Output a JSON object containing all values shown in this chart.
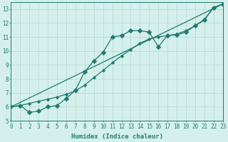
{
  "line1_x": [
    0,
    1,
    2,
    3,
    4,
    5,
    6,
    7,
    8,
    9,
    10,
    11,
    12,
    13,
    14,
    15,
    16,
    17,
    18,
    19,
    20,
    21,
    22,
    23
  ],
  "line1_y": [
    6.0,
    6.1,
    5.6,
    5.7,
    6.0,
    6.1,
    6.6,
    7.2,
    8.5,
    9.3,
    9.9,
    11.0,
    11.1,
    11.45,
    11.45,
    11.35,
    10.3,
    11.1,
    11.15,
    11.35,
    11.8,
    12.2,
    13.1,
    13.35
  ],
  "line2_x": [
    0,
    23
  ],
  "line2_y": [
    6.0,
    13.35
  ],
  "line3_x": [
    0,
    1,
    2,
    3,
    4,
    5,
    6,
    7,
    8,
    9,
    10,
    11,
    12,
    13,
    14,
    15,
    16,
    17,
    18,
    19,
    20,
    21,
    22,
    23
  ],
  "line3_y": [
    6.0,
    6.1,
    6.25,
    6.4,
    6.55,
    6.7,
    6.9,
    7.15,
    7.55,
    8.1,
    8.6,
    9.15,
    9.65,
    10.1,
    10.55,
    10.85,
    11.0,
    11.1,
    11.2,
    11.45,
    11.8,
    12.25,
    13.1,
    13.35
  ],
  "line_color": "#1f7a6e",
  "bg_color": "#d5f0ec",
  "grid_color": "#b0d9d0",
  "xlabel": "Humidex (Indice chaleur)",
  "xlim": [
    0,
    23
  ],
  "ylim": [
    5.0,
    13.5
  ],
  "xticks": [
    0,
    1,
    2,
    3,
    4,
    5,
    6,
    7,
    8,
    9,
    10,
    11,
    12,
    13,
    14,
    15,
    16,
    17,
    18,
    19,
    20,
    21,
    22,
    23
  ],
  "yticks": [
    5,
    6,
    7,
    8,
    9,
    10,
    11,
    12,
    13
  ],
  "xlabel_fontsize": 6.5,
  "tick_fontsize": 5.5,
  "marker_size": 3.5,
  "line_width": 0.9
}
